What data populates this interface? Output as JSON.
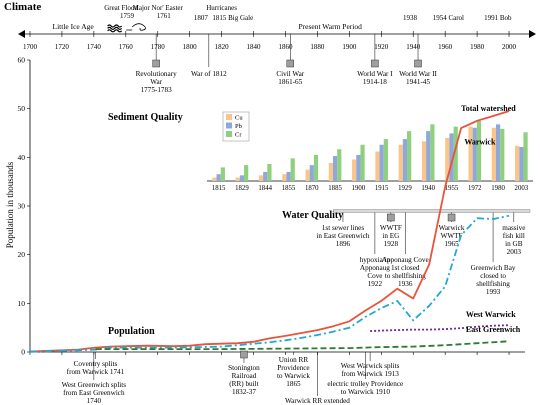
{
  "chart_data": {
    "type": "line",
    "title": "",
    "xlim": [
      1700,
      2010
    ],
    "ylim": [
      0,
      60
    ],
    "ylabel": "Population in thousands",
    "xticks": [
      1700,
      1720,
      1740,
      1760,
      1780,
      1800,
      1820,
      1840,
      1860,
      1880,
      1900,
      1920,
      1940,
      1960,
      1980,
      2000
    ],
    "yticks": [
      0,
      10,
      20,
      30,
      40,
      50,
      60
    ],
    "section_labels": {
      "climate": "Climate",
      "population": "Population",
      "sediment": "Sediment Quality",
      "water": "Water Quality"
    },
    "climate_periods": [
      {
        "label": "Little Ice Age",
        "year": 1727
      },
      {
        "label": "Present Warm Period",
        "year": 1888
      }
    ],
    "climate_events": [
      {
        "label": "Great Flood",
        "sub": "1759",
        "year": 1757,
        "row": 0
      },
      {
        "label": "Major Nor' Easter",
        "sub": "1761",
        "year": 1780,
        "row": 0
      },
      {
        "label": "Hurricanes",
        "sub": "",
        "year": 1820,
        "row": 0
      },
      {
        "label": "1807",
        "sub": "",
        "year": 1807,
        "row": 1
      },
      {
        "label": "1815 Big Gale",
        "sub": "",
        "year": 1827,
        "row": 1
      },
      {
        "label": "1938",
        "sub": "",
        "year": 1938,
        "row": 1
      },
      {
        "label": "1954 Carol",
        "sub": "",
        "year": 1962,
        "row": 1
      },
      {
        "label": "1991 Bob",
        "sub": "",
        "year": 1993,
        "row": 1
      }
    ],
    "history_events": [
      {
        "lines": [
          "Revolutionary",
          "War",
          "1775-1783"
        ],
        "year": 1779,
        "marker": true
      },
      {
        "lines": [
          "War of 1812"
        ],
        "year": 1812,
        "marker": false
      },
      {
        "lines": [
          "Civil War",
          "1861-65"
        ],
        "year": 1863,
        "marker": true
      },
      {
        "lines": [
          "World War I",
          "1914-18"
        ],
        "year": 1916,
        "marker": true
      },
      {
        "lines": [
          "World War II",
          "1941-45"
        ],
        "year": 1943,
        "marker": true
      }
    ],
    "series": [
      {
        "name": "Total watershed",
        "color": "#e8533a",
        "dash": "",
        "x": [
          1700,
          1730,
          1741,
          1750,
          1774,
          1790,
          1800,
          1810,
          1820,
          1830,
          1840,
          1850,
          1860,
          1870,
          1880,
          1890,
          1900,
          1910,
          1920,
          1930,
          1940,
          1950,
          1960,
          1970,
          1980,
          1990,
          2000
        ],
        "y": [
          0.1,
          0.5,
          0.9,
          1.1,
          1.3,
          1.2,
          1.3,
          1.6,
          1.7,
          1.8,
          2.1,
          2.8,
          3.3,
          3.9,
          4.5,
          5.3,
          6.3,
          8.5,
          10.5,
          13.0,
          11.0,
          18.0,
          34.0,
          46.0,
          47.5,
          48.5,
          49.5
        ]
      },
      {
        "name": "Warwick",
        "color": "#1fa9d6",
        "dash": "7,3,2,3",
        "x": [
          1700,
          1741,
          1750,
          1790,
          1820,
          1850,
          1860,
          1870,
          1880,
          1890,
          1900,
          1910,
          1920,
          1930,
          1940,
          1950,
          1960,
          1970,
          1980,
          1990,
          2000
        ],
        "y": [
          0.05,
          0.5,
          0.9,
          0.9,
          1.1,
          2.0,
          2.4,
          2.9,
          3.5,
          4.2,
          5.0,
          7.2,
          9.0,
          10.5,
          6.5,
          9.5,
          13.5,
          24.0,
          27.5,
          27.3,
          28.0
        ]
      },
      {
        "name": "West Warwick",
        "color": "#6b2c91",
        "dash": "2,2",
        "x": [
          1913,
          1920,
          1930,
          1940,
          1950,
          1960,
          1970,
          1980,
          1990,
          2000
        ],
        "y": [
          4.3,
          4.4,
          4.5,
          4.6,
          4.6,
          4.7,
          4.9,
          5.2,
          5.4,
          5.5
        ]
      },
      {
        "name": "East Greenwich",
        "color": "#2d7a32",
        "dash": "6,3",
        "x": [
          1741,
          1780,
          1820,
          1860,
          1900,
          1920,
          1940,
          1960,
          1980,
          2000
        ],
        "y": [
          0.6,
          0.6,
          0.6,
          0.7,
          0.8,
          1.0,
          1.1,
          1.4,
          1.8,
          2.2
        ]
      }
    ],
    "series_labels": [
      {
        "name": "Total watershed",
        "year": 1970,
        "value": 49.5
      },
      {
        "name": "Warwick",
        "year": 1972,
        "value": 42.6
      },
      {
        "name": "West Warwick",
        "year": 1973,
        "value": 7.2
      },
      {
        "name": "East Greenwich",
        "year": 1973,
        "value": 4.1
      }
    ],
    "water_quality_events": [
      {
        "lines": [
          "1st sewer lines",
          "in East Greenwich",
          "1896"
        ],
        "year": 1896,
        "marker": false
      },
      {
        "lines": [
          "WWTF",
          "in EG",
          "1928"
        ],
        "year": 1926,
        "marker": true
      },
      {
        "lines": [
          "hypoxia in",
          "Apponaug",
          "Cove",
          "1922"
        ],
        "year": 1916,
        "marker": false
      },
      {
        "lines": [
          "Apponaug Cove",
          "1st closed",
          "to shellfishing",
          "1936"
        ],
        "year": 1935,
        "marker": false
      },
      {
        "lines": [
          "Warwick",
          "WWTF",
          "1965"
        ],
        "year": 1964,
        "marker": true
      },
      {
        "lines": [
          "Greenwich Bay",
          "closed to",
          "shellfishing",
          "1993"
        ],
        "year": 1990,
        "marker": false
      },
      {
        "lines": [
          "massive",
          "fish kill",
          "in GB",
          "2003"
        ],
        "year": 2003,
        "marker": false
      }
    ],
    "town_events": [
      {
        "lines": [
          "Coventry splits",
          "from Warwick 1741"
        ],
        "year": 1741
      },
      {
        "lines": [
          "West Greenwich splits",
          "from East Greenwich",
          "1740"
        ],
        "year": 1740
      },
      {
        "lines": [
          "Stonington",
          "Railroad",
          "(RR) built",
          "1832-37"
        ],
        "year": 1834
      },
      {
        "lines": [
          "Union RR",
          "Providence",
          "to Warwick",
          "1865"
        ],
        "year": 1865
      },
      {
        "lines": [
          "Warwick RR extended"
        ],
        "year": 1880
      },
      {
        "lines": [
          "West Warwick splits",
          "from Warwick 1913"
        ],
        "year": 1913
      },
      {
        "lines": [
          "electric trolley Providence",
          "to Warwick 1910"
        ],
        "year": 1910
      }
    ],
    "sediment": {
      "categories": [
        "1815",
        "1829",
        "1844",
        "1855",
        "1870",
        "1885",
        "1900",
        "1915",
        "1929",
        "1940",
        "1955",
        "1972",
        "1980",
        "2003"
      ],
      "legend": [
        "Cu",
        "Pb",
        "Cr"
      ],
      "colors": [
        "#fbc58a",
        "#8fa8dc",
        "#8fd07e"
      ],
      "series": [
        {
          "name": "Cu",
          "values": [
            3,
            3,
            5,
            6,
            10,
            16,
            19,
            26,
            32,
            35,
            38,
            48,
            47,
            31
          ]
        },
        {
          "name": "Pb",
          "values": [
            6,
            5,
            8,
            8,
            14,
            22,
            23,
            32,
            37,
            44,
            42,
            47,
            50,
            30
          ]
        },
        {
          "name": "Cr",
          "values": [
            12,
            14,
            15,
            20,
            23,
            28,
            32,
            37,
            44,
            50,
            48,
            53,
            46,
            43
          ]
        }
      ]
    }
  }
}
